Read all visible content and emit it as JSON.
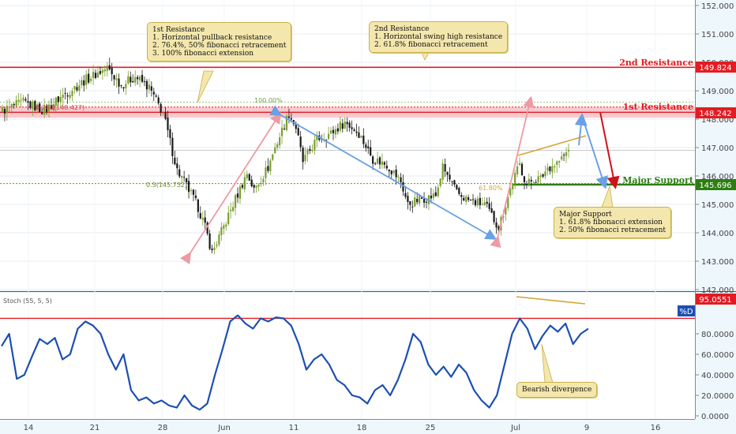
{
  "colors": {
    "background": "#eef7fc",
    "panel_bg": "#ffffff",
    "bull_candle": "#7a9f2c",
    "bear_candle": "#1a1a1a",
    "resistance_red": "#e31b23",
    "support_green": "#2e7d12",
    "stoch_line": "#1c4fb3",
    "arrow_blue": "#6aa0e4",
    "arrow_pink": "#ee9aa4",
    "arrow_orange": "#d8a331",
    "arrow_red": "#d0121a",
    "callout_bg": "#f3e7ad"
  },
  "price_axis": {
    "ticks": [
      "152.000",
      "151.000",
      "150.000",
      "149.000",
      "148.000",
      "147.000",
      "146.000",
      "145.000",
      "144.000",
      "143.000",
      "142.000"
    ]
  },
  "stoch_axis": {
    "ticks": [
      "80.0000",
      "60.0000",
      "40.0000",
      "20.0000",
      "0.0000"
    ]
  },
  "date_axis": {
    "ticks": [
      "14",
      "21",
      "28",
      "Jun",
      "11",
      "18",
      "25",
      "Jul",
      "9",
      "16"
    ]
  },
  "labels": {
    "resistance2_name": "2nd Resistance",
    "resistance2_price": "149.824",
    "resistance1_name": "1st Resistance",
    "resistance1_price": "148.242",
    "support_name": "Major Support",
    "support_price": "145.696",
    "fib_100": "100.00%",
    "fib_0764": "0.764(148.427)",
    "fib_05": "0.5(145.732)",
    "fib_618": "61.80%",
    "stoch_title": "Stoch (55, 5, 5)",
    "stoch_value": "95.0551",
    "stoch_badge": "%D"
  },
  "callouts": {
    "res1": "1st Resistance\n1. Horizontal pullback resistance\n2. 76.4%, 50% fibonacci retracement\n3. 100% fibonacci extension",
    "res2": "2nd Resistance\n1. Horizontal swing high resistance\n2. 61.8% fibonacci retracement",
    "support": "Major Support\n1. 61.8% fibonacci extension\n2. 50% fibonacci retracement",
    "divergence": "Bearish divergence"
  },
  "chart_data": [
    {
      "type": "candlestick",
      "title": "",
      "ylim": [
        142,
        152.2
      ],
      "levels": [
        149.824,
        148.242,
        145.696
      ],
      "price_path": [
        [
          0,
          148.3
        ],
        [
          3,
          148.6
        ],
        [
          6,
          148.3
        ],
        [
          9,
          148.9
        ],
        [
          12,
          149.4
        ],
        [
          15,
          149.8
        ],
        [
          17,
          149.2
        ],
        [
          19,
          149.5
        ],
        [
          21,
          149.1
        ],
        [
          23,
          148.2
        ],
        [
          24,
          147.2
        ],
        [
          25,
          146.2
        ],
        [
          26,
          145.8
        ],
        [
          28,
          144.9
        ],
        [
          29,
          144.2
        ],
        [
          30,
          143.3
        ],
        [
          32,
          144.4
        ],
        [
          33,
          145.0
        ],
        [
          35,
          146.1
        ],
        [
          36,
          145.5
        ],
        [
          38,
          146.3
        ],
        [
          39,
          147.0
        ],
        [
          40,
          147.6
        ],
        [
          41,
          148.2
        ],
        [
          42,
          147.7
        ],
        [
          43,
          146.5
        ],
        [
          45,
          147.3
        ],
        [
          47,
          147.5
        ],
        [
          49,
          147.9
        ],
        [
          51,
          147.5
        ],
        [
          53,
          146.6
        ],
        [
          55,
          146.4
        ],
        [
          57,
          145.8
        ],
        [
          58,
          145.0
        ],
        [
          60,
          145.2
        ],
        [
          62,
          145.3
        ],
        [
          63,
          146.3
        ],
        [
          65,
          145.4
        ],
        [
          67,
          145.1
        ],
        [
          69,
          145.0
        ],
        [
          70,
          144.6
        ],
        [
          71,
          144.2
        ],
        [
          72,
          145.0
        ],
        [
          73,
          145.8
        ],
        [
          74,
          146.4
        ],
        [
          75,
          145.7
        ],
        [
          76,
          145.9
        ],
        [
          77,
          145.9
        ],
        [
          78,
          146.3
        ],
        [
          79,
          146.4
        ],
        [
          80,
          146.6
        ],
        [
          81,
          146.9
        ]
      ]
    },
    {
      "type": "line",
      "title": "Stoch (55, 5, 5)",
      "ylim": [
        0,
        100
      ],
      "series": [
        {
          "values": [
            [
              0,
              68
            ],
            [
              1,
              80
            ],
            [
              2,
              36
            ],
            [
              3,
              40
            ],
            [
              4,
              58
            ],
            [
              5,
              75
            ],
            [
              6,
              70
            ],
            [
              7,
              76
            ],
            [
              8,
              55
            ],
            [
              9,
              60
            ],
            [
              10,
              85
            ],
            [
              11,
              92
            ],
            [
              12,
              88
            ],
            [
              13,
              80
            ],
            [
              14,
              60
            ],
            [
              15,
              45
            ],
            [
              16,
              60
            ],
            [
              17,
              25
            ],
            [
              18,
              15
            ],
            [
              19,
              18
            ],
            [
              20,
              12
            ],
            [
              21,
              15
            ],
            [
              22,
              10
            ],
            [
              23,
              8
            ],
            [
              24,
              20
            ],
            [
              25,
              10
            ],
            [
              26,
              6
            ],
            [
              27,
              12
            ],
            [
              28,
              40
            ],
            [
              29,
              65
            ],
            [
              30,
              92
            ],
            [
              31,
              98
            ],
            [
              32,
              90
            ],
            [
              33,
              85
            ],
            [
              34,
              95
            ],
            [
              35,
              92
            ],
            [
              36,
              96
            ],
            [
              37,
              95
            ],
            [
              38,
              88
            ],
            [
              39,
              70
            ],
            [
              40,
              45
            ],
            [
              41,
              55
            ],
            [
              42,
              60
            ],
            [
              43,
              50
            ],
            [
              44,
              35
            ],
            [
              45,
              30
            ],
            [
              46,
              20
            ],
            [
              47,
              18
            ],
            [
              48,
              12
            ],
            [
              49,
              25
            ],
            [
              50,
              30
            ],
            [
              51,
              20
            ],
            [
              52,
              35
            ],
            [
              53,
              55
            ],
            [
              54,
              80
            ],
            [
              55,
              72
            ],
            [
              56,
              50
            ],
            [
              57,
              40
            ],
            [
              58,
              48
            ],
            [
              59,
              38
            ],
            [
              60,
              50
            ],
            [
              61,
              42
            ],
            [
              62,
              25
            ],
            [
              63,
              15
            ],
            [
              64,
              8
            ],
            [
              65,
              20
            ],
            [
              66,
              50
            ],
            [
              67,
              80
            ],
            [
              68,
              95
            ],
            [
              69,
              85
            ],
            [
              70,
              65
            ],
            [
              71,
              78
            ],
            [
              72,
              88
            ],
            [
              73,
              82
            ],
            [
              74,
              90
            ],
            [
              75,
              70
            ],
            [
              76,
              80
            ],
            [
              77,
              85
            ]
          ]
        }
      ]
    }
  ]
}
